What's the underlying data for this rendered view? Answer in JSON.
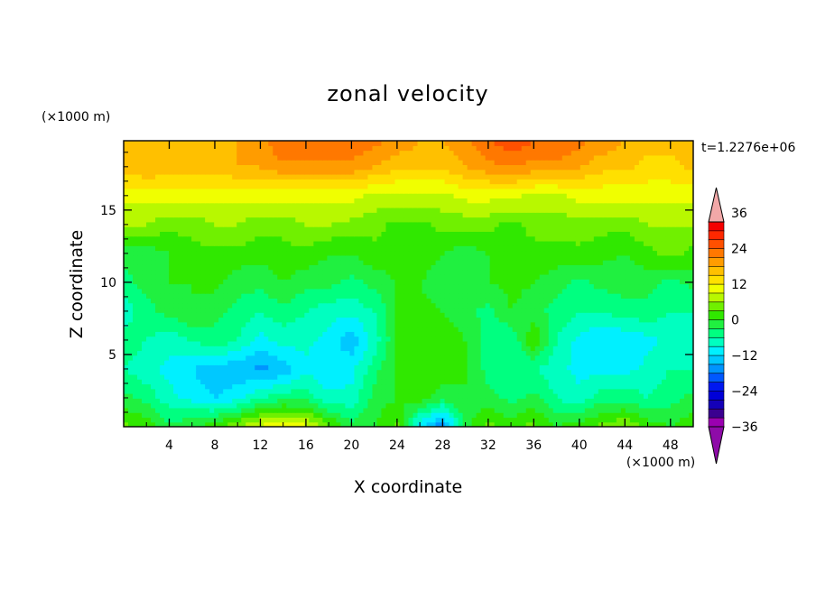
{
  "chart_data": {
    "type": "heatmap",
    "title": "zonal velocity",
    "xlabel": "X coordinate",
    "ylabel": "Z coordinate",
    "x_unit": "(×1000 m)",
    "y_unit": "(×1000 m)",
    "time_label": "t=1.2276e+06",
    "xlim": [
      0,
      50
    ],
    "ylim": [
      0,
      19.8
    ],
    "x_ticks": [
      4,
      8,
      12,
      16,
      20,
      24,
      28,
      32,
      36,
      40,
      44,
      48
    ],
    "y_ticks": [
      5,
      10,
      15
    ],
    "colorbar": {
      "levels": [
        -42,
        -39,
        -36,
        -33,
        -30,
        -27,
        -24,
        -21,
        -18,
        -15,
        -12,
        -9,
        -6,
        -3,
        0,
        3,
        6,
        9,
        12,
        15,
        18,
        21,
        24,
        27,
        30,
        33,
        36,
        39,
        42
      ],
      "tick_values": [
        36,
        24,
        12,
        0,
        -12,
        -24,
        -36
      ],
      "tick_labels": [
        "36",
        "24",
        "12",
        "0",
        "−12",
        "−24",
        "−36"
      ],
      "colors": [
        "#9a00b0",
        "#3a0090",
        "#1400b8",
        "#0000d8",
        "#0018f0",
        "#0058ff",
        "#0094ff",
        "#00c8ff",
        "#00f0ff",
        "#00ffc0",
        "#00ff80",
        "#20f040",
        "#30e800",
        "#70f000",
        "#b8f800",
        "#f0ff00",
        "#ffe000",
        "#ffc000",
        "#ff9c00",
        "#ff7800",
        "#ff5000",
        "#ff2800",
        "#f40000"
      ],
      "max_arrow_color": "#f2a8a8",
      "min_arrow_color": "#8e0ba8"
    },
    "field": {
      "x": [
        0,
        2,
        4,
        6,
        8,
        10,
        12,
        14,
        16,
        18,
        20,
        22,
        24,
        26,
        28,
        30,
        32,
        34,
        36,
        38,
        40,
        42,
        44,
        46,
        48,
        50
      ],
      "z": [
        0,
        2,
        4,
        6,
        8,
        10,
        12,
        14,
        16,
        18,
        19.8
      ],
      "values": [
        [
          4,
          2,
          -2,
          0,
          2,
          6,
          10,
          12,
          10,
          4,
          -2,
          0,
          4,
          -12,
          -18,
          -2,
          4,
          2,
          4,
          0,
          2,
          4,
          6,
          2,
          0,
          2
        ],
        [
          -2,
          -4,
          -8,
          -10,
          -12,
          -10,
          -6,
          -4,
          -4,
          -8,
          -8,
          -2,
          0,
          2,
          -2,
          0,
          -2,
          -4,
          -2,
          -6,
          -8,
          -4,
          -4,
          -6,
          -4,
          -2
        ],
        [
          -6,
          -8,
          -10,
          -12,
          -14,
          -14,
          -16,
          -14,
          -10,
          -12,
          -10,
          -4,
          1,
          1,
          2,
          0,
          -4,
          -6,
          -6,
          -8,
          -10,
          -10,
          -10,
          -8,
          -6,
          -6
        ],
        [
          -4,
          -6,
          -8,
          -6,
          -4,
          -6,
          -10,
          -8,
          -8,
          -10,
          -14,
          -8,
          0,
          3,
          3,
          0,
          -4,
          -6,
          3,
          -6,
          -10,
          -12,
          -12,
          -10,
          -8,
          -6
        ],
        [
          -8,
          -4,
          -2,
          0,
          -2,
          -4,
          -6,
          -4,
          -6,
          -8,
          -8,
          -6,
          0,
          1,
          0,
          -2,
          -4,
          0,
          -2,
          -4,
          -6,
          -6,
          -4,
          -4,
          -6,
          -6
        ],
        [
          -4,
          -2,
          0,
          0,
          1,
          -2,
          -2,
          0,
          -2,
          -2,
          -4,
          -2,
          0,
          0,
          -2,
          -2,
          0,
          1,
          0,
          -2,
          -4,
          -2,
          -2,
          -2,
          -4,
          -2
        ],
        [
          -2,
          -2,
          0,
          2,
          2,
          2,
          1,
          2,
          2,
          0,
          0,
          2,
          2,
          2,
          0,
          -2,
          0,
          2,
          2,
          2,
          2,
          1,
          0,
          2,
          4,
          2
        ],
        [
          6,
          6,
          4,
          4,
          6,
          6,
          4,
          4,
          6,
          6,
          5,
          4,
          2,
          2,
          4,
          4,
          4,
          2,
          4,
          4,
          5,
          4,
          4,
          6,
          6,
          6
        ],
        [
          10,
          10,
          10,
          10,
          10,
          10,
          10,
          10,
          10,
          10,
          10,
          8,
          8,
          8,
          8,
          10,
          10,
          10,
          8,
          8,
          10,
          10,
          10,
          10,
          10,
          10
        ],
        [
          16,
          18,
          17,
          17,
          16,
          18,
          18,
          20,
          20,
          20,
          20,
          18,
          16,
          16,
          16,
          18,
          20,
          21,
          20,
          20,
          18,
          16,
          16,
          14,
          14,
          16
        ],
        [
          16,
          16,
          16,
          18,
          18,
          18,
          20,
          24,
          24,
          24,
          24,
          22,
          20,
          18,
          18,
          20,
          24,
          26,
          24,
          24,
          22,
          20,
          18,
          16,
          16,
          16
        ]
      ]
    }
  }
}
